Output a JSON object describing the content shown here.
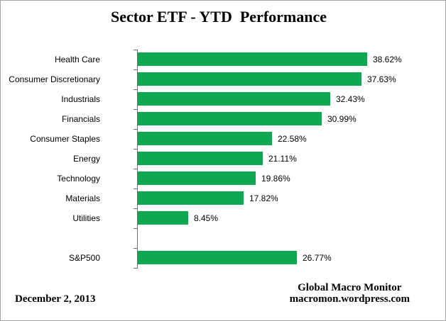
{
  "title": "Sector ETF - YTD  Performance",
  "chart_data": {
    "type": "bar",
    "orientation": "horizontal",
    "title": "Sector ETF - YTD  Performance",
    "xlabel": "",
    "ylabel": "",
    "xlim": [
      0,
      45
    ],
    "grid": false,
    "legend": false,
    "categories": [
      "Health Care",
      "Consumer Discretionary",
      "Industrials",
      "Financials",
      "Consumer Staples",
      "Energy",
      "Technology",
      "Materials",
      "Utilities",
      "",
      "S&P500"
    ],
    "values": [
      38.62,
      37.63,
      32.43,
      30.99,
      22.58,
      21.11,
      19.86,
      17.82,
      8.45,
      null,
      26.77
    ],
    "value_labels": [
      "38.62%",
      "37.63%",
      "32.43%",
      "30.99%",
      "22.58%",
      "21.11%",
      "19.86%",
      "17.82%",
      "8.45%",
      "",
      "26.77%"
    ]
  },
  "footer": {
    "date": "December 2, 2013",
    "source_name": "Global Macro Monitor",
    "source_url": "macromon.wordpress.com"
  },
  "colors": {
    "bar": "#0DA850",
    "axis": "#6e6e6e",
    "border": "#a4a4a4",
    "text": "#000000"
  }
}
